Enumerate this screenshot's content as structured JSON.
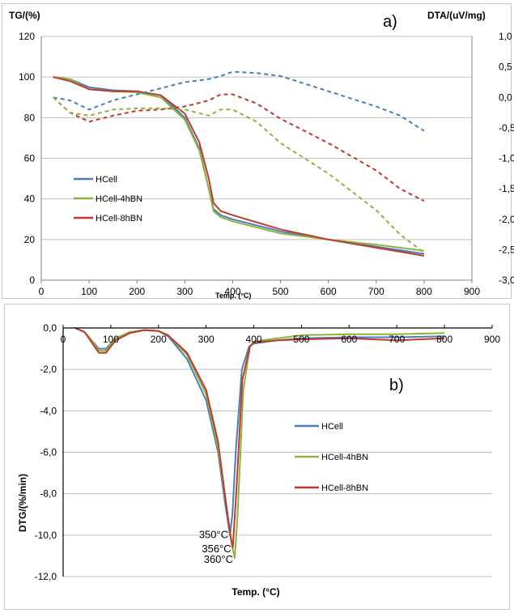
{
  "chart_data": [
    {
      "type": "line",
      "panel_label": "a)",
      "ylabel_left": "TG/(%)",
      "ylabel_right": "DTA/(uV/mg)",
      "xlabel": "Temp. (°C)",
      "xlim": [
        0,
        900
      ],
      "ylim_left": [
        0,
        120
      ],
      "ylim_right": [
        -3.0,
        1.0
      ],
      "x_ticks": [
        "0",
        "100",
        "200",
        "300",
        "400",
        "500",
        "600",
        "700",
        "800",
        "900"
      ],
      "y_ticks_left": [
        "0",
        "20",
        "40",
        "60",
        "80",
        "100",
        "120"
      ],
      "y_ticks_right": [
        "-3,0",
        "-2,5",
        "-2,0",
        "-1,5",
        "-1,0",
        "-0,5",
        "0,0",
        "0,5",
        "1,0"
      ],
      "grid": "horizontal",
      "legend_position": "left-middle",
      "series": [
        {
          "name": "HCell",
          "color": "#4a7ebb",
          "axis": "left",
          "style": "solid",
          "x": [
            25,
            60,
            100,
            150,
            200,
            250,
            300,
            330,
            350,
            360,
            375,
            400,
            500,
            600,
            700,
            800
          ],
          "y": [
            100,
            99,
            95,
            93.5,
            93,
            91,
            80,
            65,
            45,
            35,
            32,
            30,
            24,
            20,
            16.5,
            13
          ]
        },
        {
          "name": "HCell-4hBN",
          "color": "#8cb43c",
          "axis": "left",
          "style": "solid",
          "x": [
            25,
            60,
            100,
            150,
            200,
            250,
            300,
            330,
            350,
            360,
            375,
            400,
            500,
            600,
            700,
            800
          ],
          "y": [
            100,
            99,
            94,
            93,
            92.5,
            90,
            79,
            64,
            45,
            34,
            31,
            29,
            23,
            20,
            17.5,
            14.5
          ]
        },
        {
          "name": "HCell-8hBN",
          "color": "#c0392b",
          "axis": "left",
          "style": "solid",
          "x": [
            25,
            60,
            100,
            150,
            200,
            250,
            300,
            330,
            350,
            360,
            375,
            400,
            500,
            600,
            700,
            800
          ],
          "y": [
            100,
            98,
            94,
            93,
            93,
            91,
            82,
            68,
            50,
            38,
            34,
            32,
            25,
            20,
            16,
            12
          ]
        },
        {
          "name": "",
          "color": "#4a7ebb",
          "axis": "right",
          "style": "dashed",
          "x": [
            25,
            60,
            100,
            150,
            200,
            250,
            300,
            350,
            375,
            400,
            450,
            500,
            600,
            700,
            750,
            800
          ],
          "y": [
            0.0,
            -0.05,
            -0.2,
            -0.05,
            0.05,
            0.15,
            0.25,
            0.3,
            0.35,
            0.42,
            0.4,
            0.35,
            0.1,
            -0.15,
            -0.3,
            -0.55
          ]
        },
        {
          "name": "",
          "color": "#c0392b",
          "axis": "right",
          "style": "dashed",
          "x": [
            25,
            60,
            100,
            150,
            200,
            250,
            300,
            350,
            375,
            400,
            450,
            500,
            600,
            700,
            750,
            800
          ],
          "y": [
            0.0,
            -0.25,
            -0.4,
            -0.3,
            -0.22,
            -0.2,
            -0.15,
            -0.05,
            0.05,
            0.05,
            -0.1,
            -0.35,
            -0.75,
            -1.2,
            -1.5,
            -1.7
          ]
        },
        {
          "name": "",
          "color": "#8cb43c",
          "axis": "right",
          "style": "dashed",
          "x": [
            25,
            60,
            100,
            150,
            200,
            250,
            300,
            350,
            375,
            400,
            450,
            500,
            600,
            700,
            750,
            800
          ],
          "y": [
            0.0,
            -0.25,
            -0.3,
            -0.2,
            -0.18,
            -0.18,
            -0.2,
            -0.3,
            -0.2,
            -0.2,
            -0.4,
            -0.75,
            -1.25,
            -1.85,
            -2.25,
            -2.55
          ]
        }
      ]
    },
    {
      "type": "line",
      "panel_label": "b)",
      "ylabel": "DTG/(%/min)",
      "xlabel": "Temp. (°C)",
      "xlim": [
        0,
        900
      ],
      "ylim": [
        -12.0,
        0.0
      ],
      "x_ticks": [
        "0",
        "100",
        "200",
        "300",
        "400",
        "500",
        "600",
        "700",
        "800",
        "900"
      ],
      "y_ticks": [
        "-12,0",
        "-10,0",
        "-8,0",
        "-6,0",
        "-4,0",
        "-2,0",
        "0,0"
      ],
      "grid": "horizontal",
      "legend_position": "right-middle",
      "annotations": [
        {
          "text": "350°C",
          "x": 350,
          "y": -9.9
        },
        {
          "text": "356°C",
          "x": 356,
          "y": -10.6
        },
        {
          "text": "360°C",
          "x": 360,
          "y": -11.1
        }
      ],
      "series": [
        {
          "name": "HCell",
          "color": "#4a7ebb",
          "x": [
            25,
            45,
            60,
            75,
            90,
            110,
            140,
            170,
            200,
            220,
            260,
            300,
            325,
            340,
            350,
            355,
            362,
            375,
            390,
            400,
            450,
            500,
            600,
            700,
            800
          ],
          "y": [
            0,
            -0.2,
            -0.6,
            -1.0,
            -1.0,
            -0.5,
            -0.2,
            -0.1,
            -0.15,
            -0.4,
            -1.5,
            -3.5,
            -6.0,
            -8.5,
            -10.0,
            -9.0,
            -6.0,
            -2.0,
            -0.9,
            -0.75,
            -0.6,
            -0.5,
            -0.45,
            -0.45,
            -0.4
          ]
        },
        {
          "name": "HCell-4hBN",
          "color": "#8cb43c",
          "x": [
            25,
            45,
            60,
            75,
            90,
            110,
            140,
            170,
            200,
            220,
            260,
            300,
            325,
            345,
            355,
            360,
            366,
            378,
            392,
            400,
            450,
            500,
            600,
            700,
            800
          ],
          "y": [
            0,
            -0.2,
            -0.6,
            -1.1,
            -1.1,
            -0.5,
            -0.2,
            -0.1,
            -0.15,
            -0.35,
            -1.3,
            -3.2,
            -5.8,
            -9.0,
            -10.6,
            -11.1,
            -9.0,
            -3.0,
            -0.9,
            -0.65,
            -0.5,
            -0.35,
            -0.3,
            -0.3,
            -0.25
          ]
        },
        {
          "name": "HCell-8hBN",
          "color": "#c0392b",
          "x": [
            25,
            45,
            60,
            75,
            90,
            110,
            140,
            170,
            200,
            220,
            260,
            300,
            325,
            342,
            352,
            356,
            363,
            376,
            392,
            400,
            450,
            500,
            600,
            700,
            800
          ],
          "y": [
            0,
            -0.2,
            -0.7,
            -1.2,
            -1.2,
            -0.6,
            -0.25,
            -0.1,
            -0.15,
            -0.35,
            -1.2,
            -3.0,
            -5.5,
            -8.5,
            -10.2,
            -10.6,
            -8.0,
            -2.5,
            -0.9,
            -0.7,
            -0.6,
            -0.55,
            -0.5,
            -0.6,
            -0.5
          ]
        }
      ]
    }
  ]
}
